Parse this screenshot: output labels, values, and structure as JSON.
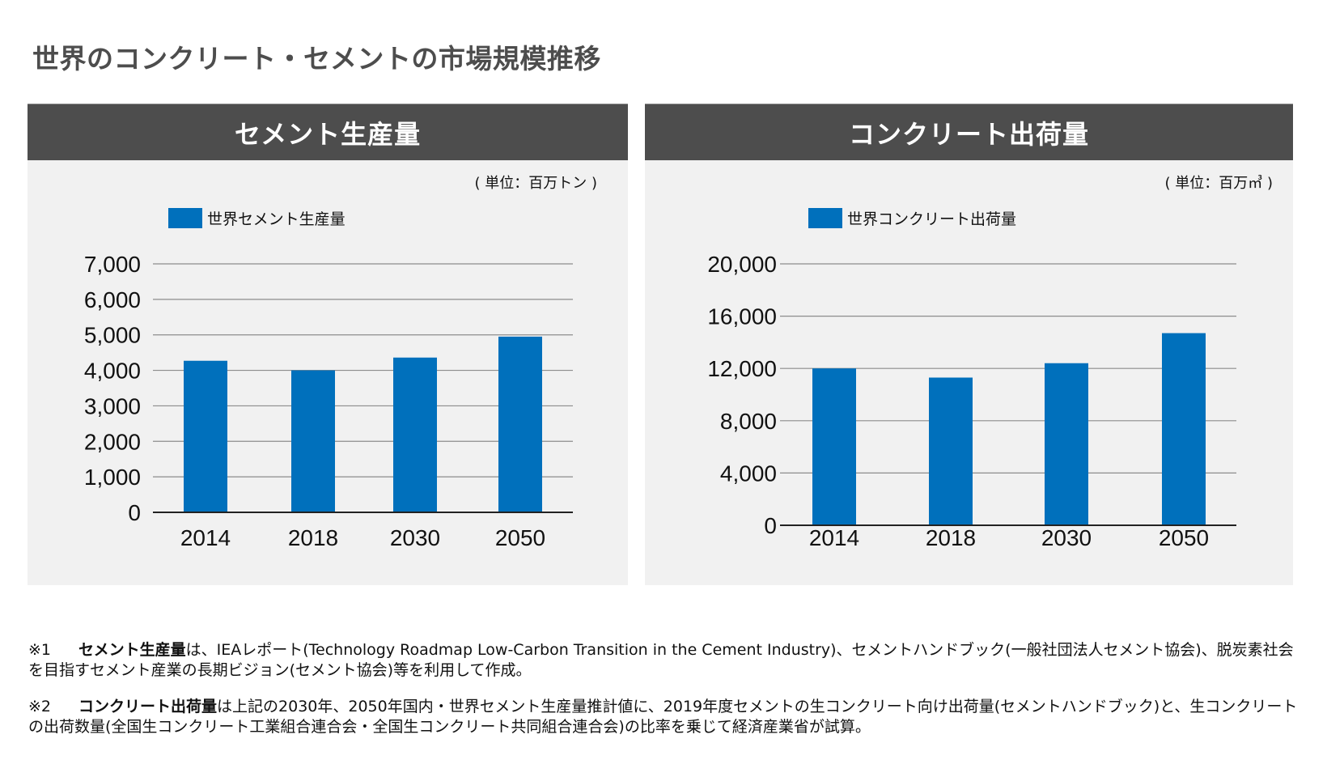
{
  "page_title": "世界のコンクリート・セメントの市場規模推移",
  "panels": {
    "left": {
      "title": "セメント生産量",
      "unit": "( 単位：百万トン )",
      "legend": "世界セメント生産量"
    },
    "right": {
      "title": "コンクリート出荷量",
      "unit": "( 単位：百万㎥ )",
      "legend": "世界コンクリート出荷量"
    }
  },
  "colors": {
    "bar": "#0070bc",
    "header_bg": "#4d4d4d",
    "panel_bg": "#f1f1f1"
  },
  "chart_data": [
    {
      "type": "bar",
      "title": "セメント生産量",
      "unit": "百万トン",
      "categories": [
        "2014",
        "2018",
        "2030",
        "2050"
      ],
      "series": [
        {
          "name": "世界セメント生産量",
          "values": [
            4270,
            4000,
            4360,
            4950
          ]
        }
      ],
      "yticks": [
        0,
        1000,
        2000,
        3000,
        4000,
        5000,
        6000,
        7000
      ],
      "ytick_labels": [
        "0",
        "1,000",
        "2,000",
        "3,000",
        "4,000",
        "5,000",
        "6,000",
        "7,000"
      ],
      "ylim": [
        0,
        7000
      ],
      "xlabel": "",
      "ylabel": "",
      "grid": true,
      "legend_position": "top-left"
    },
    {
      "type": "bar",
      "title": "コンクリート出荷量",
      "unit": "百万㎥",
      "categories": [
        "2014",
        "2018",
        "2030",
        "2050"
      ],
      "series": [
        {
          "name": "世界コンクリート出荷量",
          "values": [
            12000,
            11300,
            12400,
            14700
          ]
        }
      ],
      "yticks": [
        0,
        4000,
        8000,
        12000,
        16000,
        20000
      ],
      "ytick_labels": [
        "0",
        "4,000",
        "8,000",
        "12,000",
        "16,000",
        "20,000"
      ],
      "ylim": [
        0,
        20000
      ],
      "xlabel": "",
      "ylabel": "",
      "grid": true,
      "legend_position": "top-left"
    }
  ],
  "footnotes": [
    {
      "mark": "※1",
      "term": "セメント生産量",
      "text": "は、IEAレポート(Technology Roadmap Low-Carbon Transition in the Cement Industry)、セメントハンドブック(一般社団法人セメント協会)、脱炭素社会を目指すセメント産業の長期ビジョン(セメント協会)等を利用して作成。"
    },
    {
      "mark": "※2",
      "term": "コンクリート出荷量",
      "text": "は上記の2030年、2050年国内・世界セメント生産量推計値に、2019年度セメントの生コンクリート向け出荷量(セメントハンドブック)と、生コンクリートの出荷数量(全国生コンクリート工業組合連合会・全国生コンクリート共同組合連合会)の比率を乗じて経済産業省が試算。"
    }
  ]
}
